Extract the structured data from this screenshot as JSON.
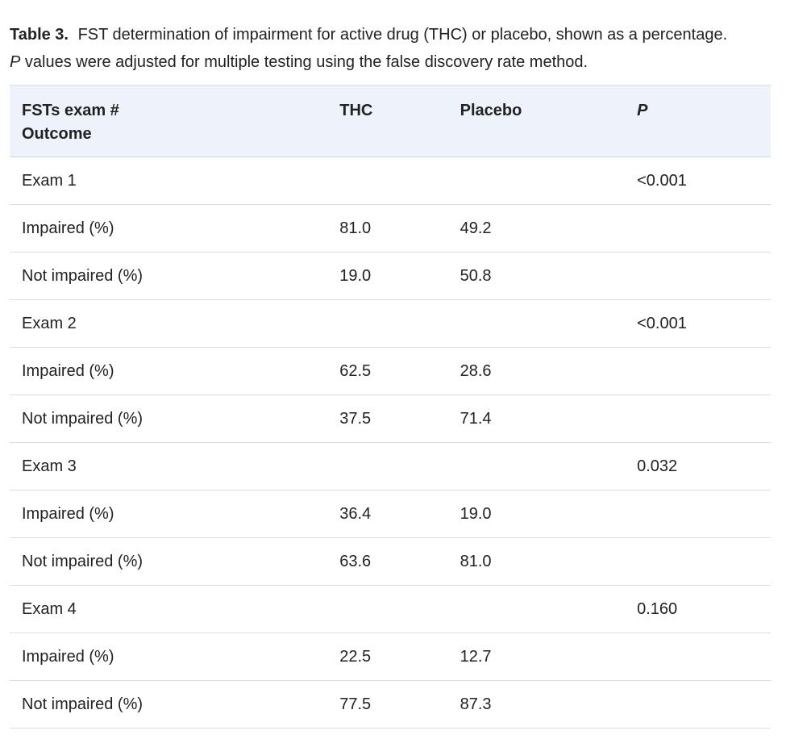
{
  "caption": {
    "label": "Table 3.",
    "text": "FST determination of impairment for active drug (THC) or placebo, shown as a percentage.",
    "note_italic": "P",
    "note_rest": " values were adjusted for multiple testing using the false discovery rate method."
  },
  "table": {
    "headers": {
      "outcome_line1": "FSTs exam #",
      "outcome_line2": "Outcome",
      "thc": "THC",
      "placebo": "Placebo",
      "p": "P"
    },
    "rows": [
      {
        "outcome": "Exam 1",
        "thc": "",
        "placebo": "",
        "p": "<0.001"
      },
      {
        "outcome": "Impaired (%)",
        "thc": "81.0",
        "placebo": "49.2",
        "p": ""
      },
      {
        "outcome": "Not impaired (%)",
        "thc": "19.0",
        "placebo": "50.8",
        "p": ""
      },
      {
        "outcome": "Exam 2",
        "thc": "",
        "placebo": "",
        "p": "<0.001"
      },
      {
        "outcome": "Impaired (%)",
        "thc": "62.5",
        "placebo": "28.6",
        "p": ""
      },
      {
        "outcome": "Not impaired (%)",
        "thc": "37.5",
        "placebo": "71.4",
        "p": ""
      },
      {
        "outcome": "Exam 3",
        "thc": "",
        "placebo": "",
        "p": "0.032"
      },
      {
        "outcome": "Impaired (%)",
        "thc": "36.4",
        "placebo": "19.0",
        "p": ""
      },
      {
        "outcome": "Not impaired (%)",
        "thc": "63.6",
        "placebo": "81.0",
        "p": ""
      },
      {
        "outcome": "Exam 4",
        "thc": "",
        "placebo": "",
        "p": "0.160"
      },
      {
        "outcome": "Impaired (%)",
        "thc": "22.5",
        "placebo": "12.7",
        "p": ""
      },
      {
        "outcome": "Not impaired (%)",
        "thc": "77.5",
        "placebo": "87.3",
        "p": ""
      }
    ]
  }
}
